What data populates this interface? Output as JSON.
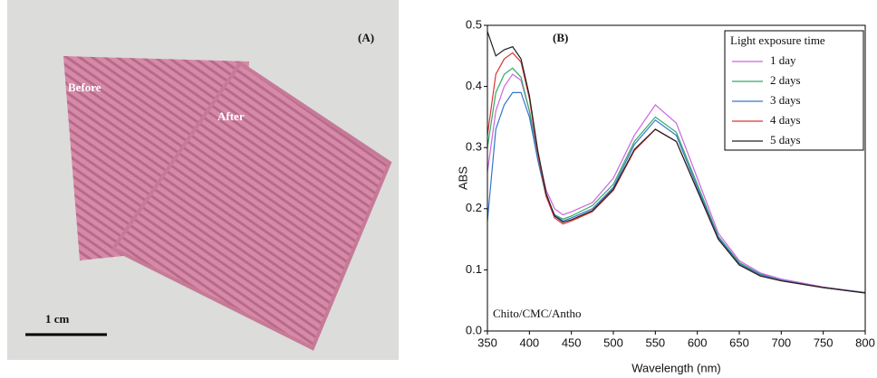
{
  "photo": {
    "label": "(A)",
    "before": "Before",
    "after": "After",
    "scale": "1 cm"
  },
  "chart_data": {
    "type": "line",
    "panel_label": "(B)",
    "annotation": "Chito/CMC/Antho",
    "x_label": "Wavelength (nm)",
    "y_label": "ABS",
    "legend_title": "Light exposure time",
    "legend": "upper right",
    "x": [
      350,
      360,
      370,
      380,
      390,
      400,
      410,
      420,
      430,
      440,
      450,
      475,
      500,
      525,
      550,
      575,
      600,
      625,
      650,
      675,
      700,
      750,
      800
    ],
    "series": [
      {
        "name": "1 day",
        "color": "#cc66dd",
        "values": [
          0.26,
          0.36,
          0.4,
          0.42,
          0.41,
          0.36,
          0.29,
          0.23,
          0.2,
          0.19,
          0.195,
          0.21,
          0.25,
          0.32,
          0.37,
          0.34,
          0.25,
          0.16,
          0.115,
          0.095,
          0.085,
          0.072,
          0.063
        ]
      },
      {
        "name": "2 days",
        "color": "#33aa66",
        "values": [
          0.3,
          0.39,
          0.42,
          0.43,
          0.415,
          0.36,
          0.28,
          0.22,
          0.19,
          0.183,
          0.188,
          0.205,
          0.24,
          0.31,
          0.35,
          0.325,
          0.24,
          0.155,
          0.112,
          0.093,
          0.083,
          0.071,
          0.063
        ]
      },
      {
        "name": "3 days",
        "color": "#3377cc",
        "values": [
          0.18,
          0.33,
          0.37,
          0.39,
          0.39,
          0.35,
          0.28,
          0.22,
          0.19,
          0.18,
          0.185,
          0.2,
          0.235,
          0.305,
          0.345,
          0.32,
          0.235,
          0.153,
          0.11,
          0.092,
          0.083,
          0.071,
          0.063
        ]
      },
      {
        "name": "4 days",
        "color": "#dd3333",
        "values": [
          0.32,
          0.42,
          0.445,
          0.455,
          0.44,
          0.38,
          0.29,
          0.22,
          0.185,
          0.175,
          0.18,
          0.195,
          0.23,
          0.295,
          0.33,
          0.31,
          0.23,
          0.15,
          0.108,
          0.09,
          0.082,
          0.071,
          0.062
        ]
      },
      {
        "name": "5 days",
        "color": "#222222",
        "values": [
          0.49,
          0.45,
          0.46,
          0.465,
          0.445,
          0.385,
          0.295,
          0.225,
          0.188,
          0.178,
          0.182,
          0.197,
          0.232,
          0.297,
          0.33,
          0.31,
          0.23,
          0.15,
          0.108,
          0.09,
          0.082,
          0.071,
          0.062
        ]
      }
    ],
    "xlim": [
      350,
      800
    ],
    "xticks": [
      350,
      400,
      450,
      500,
      550,
      600,
      650,
      700,
      750,
      800
    ],
    "ylim": [
      0,
      0.5
    ],
    "yticks": [
      {
        "value": 0,
        "label": "0.0"
      },
      0.1,
      0.2,
      0.3,
      0.4,
      0.5
    ]
  }
}
